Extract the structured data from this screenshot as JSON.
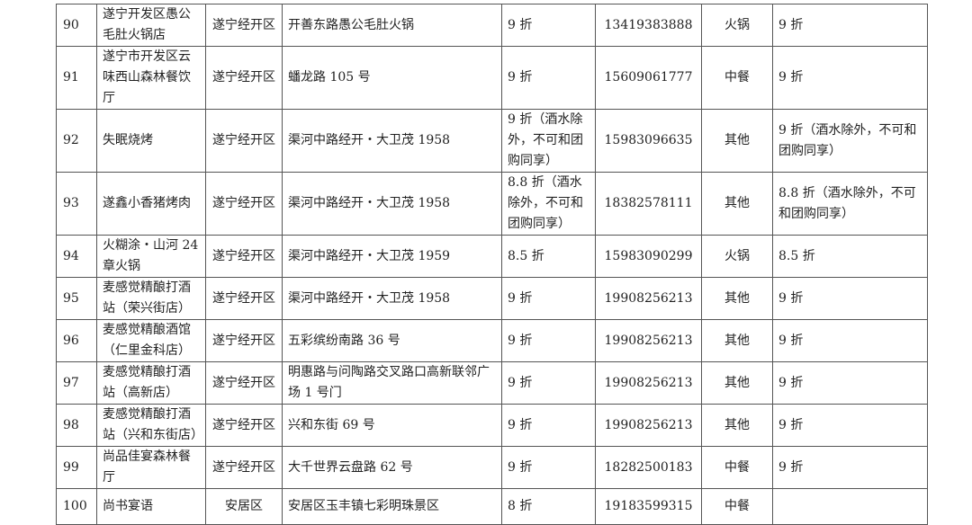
{
  "rows": [
    {
      "no": "90",
      "name": "遂宁开发区愚公毛肚火锅店",
      "district": "遂宁经开区",
      "address": "开善东路愚公毛肚火锅",
      "discount": "9 折",
      "phone": "13419383888",
      "category": "火锅",
      "remark": "9 折"
    },
    {
      "no": "91",
      "name": "遂宁市开发区云味西山森林餐饮厅",
      "district": "遂宁经开区",
      "address": "蟠龙路 105 号",
      "discount": "9 折",
      "phone": "15609061777",
      "category": "中餐",
      "remark": "9 折"
    },
    {
      "no": "92",
      "name": "失眠烧烤",
      "district": "遂宁经开区",
      "address": "渠河中路经开・大卫茂 1958",
      "discount": "9 折（酒水除外，不可和团购同享）",
      "phone": "15983096635",
      "category": "其他",
      "remark": "9 折（酒水除外，不可和团购同享）"
    },
    {
      "no": "93",
      "name": "遂鑫小香猪烤肉",
      "district": "遂宁经开区",
      "address": "渠河中路经开・大卫茂 1958",
      "discount": "8.8 折（酒水除外，不可和团购同享）",
      "phone": "18382578111",
      "category": "其他",
      "remark": "8.8 折（酒水除外，不可和团购同享）"
    },
    {
      "no": "94",
      "name": "火糊涂・山河 24 章火锅",
      "district": "遂宁经开区",
      "address": "渠河中路经开・大卫茂 1959",
      "discount": "8.5 折",
      "phone": "15983090299",
      "category": "火锅",
      "remark": "8.5 折"
    },
    {
      "no": "95",
      "name": "麦感觉精酿打酒站（荣兴街店）",
      "district": "遂宁经开区",
      "address": "渠河中路经开・大卫茂 1958",
      "discount": "9 折",
      "phone": "19908256213",
      "category": "其他",
      "remark": "9 折"
    },
    {
      "no": "96",
      "name": "麦感觉精酿酒馆（仁里金科店）",
      "district": "遂宁经开区",
      "address": "五彩缤纷南路 36 号",
      "discount": "9 折",
      "phone": "19908256213",
      "category": "其他",
      "remark": "9 折"
    },
    {
      "no": "97",
      "name": "麦感觉精酿打酒站（高新店）",
      "district": "遂宁经开区",
      "address": "明惠路与问陶路交叉路口高新联邻广场 1 号门",
      "discount": "9 折",
      "phone": "19908256213",
      "category": "其他",
      "remark": "9 折"
    },
    {
      "no": "98",
      "name": "麦感觉精酿打酒站（兴和东街店）",
      "district": "遂宁经开区",
      "address": "兴和东街 69 号",
      "discount": "9 折",
      "phone": "19908256213",
      "category": "其他",
      "remark": "9 折"
    },
    {
      "no": "99",
      "name": "尚品佳宴森林餐厅",
      "district": "遂宁经开区",
      "address": "大千世界云盘路 62 号",
      "discount": "9 折",
      "phone": "18282500183",
      "category": "中餐",
      "remark": "9 折"
    },
    {
      "no": "100",
      "name": "尚书宴语",
      "district": "安居区",
      "address": "安居区玉丰镇七彩明珠景区",
      "discount": "8 折",
      "phone": "19183599315",
      "category": "中餐",
      "remark": ""
    }
  ]
}
